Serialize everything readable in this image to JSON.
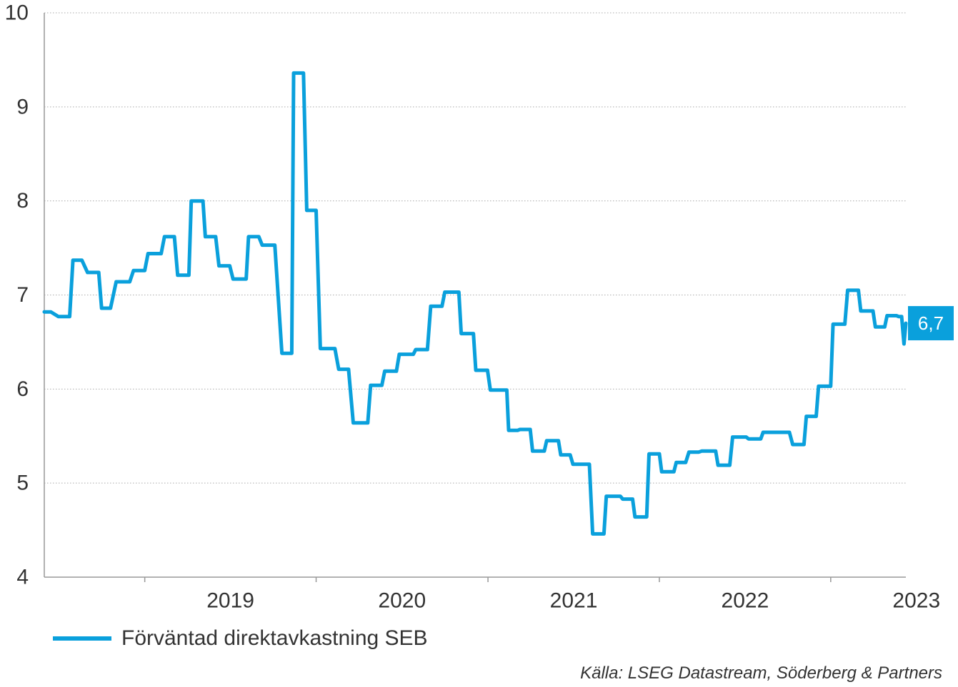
{
  "chart_data": {
    "type": "line",
    "ylim": [
      4,
      10
    ],
    "yticks": [
      4,
      5,
      6,
      7,
      8,
      9,
      10
    ],
    "xlim": [
      "2018-06-01",
      "2023-06-10"
    ],
    "x_tick_labels": [
      "2019",
      "2020",
      "2021",
      "2022",
      "2023"
    ],
    "grid": "horizontal dotted",
    "series": [
      {
        "name": "Förväntad direktavkastning SEB",
        "color": "#0AA0DC",
        "end_value_label": "6,7",
        "points": [
          [
            "2018-06-01",
            6.82
          ],
          [
            "2018-06-15",
            6.82
          ],
          [
            "2018-07-01",
            6.77
          ],
          [
            "2018-07-25",
            6.77
          ],
          [
            "2018-08-01",
            7.37
          ],
          [
            "2018-08-20",
            7.37
          ],
          [
            "2018-09-01",
            7.24
          ],
          [
            "2018-09-25",
            7.24
          ],
          [
            "2018-10-01",
            6.86
          ],
          [
            "2018-10-20",
            6.86
          ],
          [
            "2018-11-01",
            7.14
          ],
          [
            "2018-11-30",
            7.14
          ],
          [
            "2018-12-08",
            7.26
          ],
          [
            "2019-01-01",
            7.26
          ],
          [
            "2019-01-08",
            7.44
          ],
          [
            "2019-02-05",
            7.44
          ],
          [
            "2019-02-12",
            7.62
          ],
          [
            "2019-03-05",
            7.62
          ],
          [
            "2019-03-12",
            7.21
          ],
          [
            "2019-04-05",
            7.21
          ],
          [
            "2019-04-10",
            8.0
          ],
          [
            "2019-05-05",
            8.0
          ],
          [
            "2019-05-10",
            7.62
          ],
          [
            "2019-06-01",
            7.62
          ],
          [
            "2019-06-08",
            7.31
          ],
          [
            "2019-07-01",
            7.31
          ],
          [
            "2019-07-08",
            7.17
          ],
          [
            "2019-08-05",
            7.17
          ],
          [
            "2019-08-10",
            7.62
          ],
          [
            "2019-09-01",
            7.62
          ],
          [
            "2019-09-08",
            7.53
          ],
          [
            "2019-10-05",
            7.53
          ],
          [
            "2019-10-20",
            6.38
          ],
          [
            "2019-11-10",
            6.38
          ],
          [
            "2019-11-14",
            9.36
          ],
          [
            "2019-12-05",
            9.36
          ],
          [
            "2019-12-12",
            7.9
          ],
          [
            "2020-01-01",
            7.9
          ],
          [
            "2020-01-10",
            6.43
          ],
          [
            "2020-02-10",
            6.43
          ],
          [
            "2020-02-18",
            6.21
          ],
          [
            "2020-03-10",
            6.21
          ],
          [
            "2020-03-20",
            5.64
          ],
          [
            "2020-04-20",
            5.64
          ],
          [
            "2020-04-26",
            6.04
          ],
          [
            "2020-05-20",
            6.04
          ],
          [
            "2020-05-26",
            6.19
          ],
          [
            "2020-06-20",
            6.19
          ],
          [
            "2020-06-26",
            6.37
          ],
          [
            "2020-07-26",
            6.37
          ],
          [
            "2020-07-31",
            6.42
          ],
          [
            "2020-08-25",
            6.42
          ],
          [
            "2020-09-01",
            6.88
          ],
          [
            "2020-09-25",
            6.88
          ],
          [
            "2020-10-01",
            7.03
          ],
          [
            "2020-10-31",
            7.03
          ],
          [
            "2020-11-05",
            6.59
          ],
          [
            "2020-12-01",
            6.59
          ],
          [
            "2020-12-06",
            6.2
          ],
          [
            "2020-12-31",
            6.2
          ],
          [
            "2021-01-06",
            5.99
          ],
          [
            "2021-02-10",
            5.99
          ],
          [
            "2021-02-14",
            5.56
          ],
          [
            "2021-03-05",
            5.56
          ],
          [
            "2021-03-10",
            5.57
          ],
          [
            "2021-04-01",
            5.57
          ],
          [
            "2021-04-06",
            5.34
          ],
          [
            "2021-05-01",
            5.34
          ],
          [
            "2021-05-06",
            5.45
          ],
          [
            "2021-05-31",
            5.45
          ],
          [
            "2021-06-05",
            5.3
          ],
          [
            "2021-06-25",
            5.3
          ],
          [
            "2021-07-01",
            5.2
          ],
          [
            "2021-08-05",
            5.2
          ],
          [
            "2021-08-12",
            4.46
          ],
          [
            "2021-09-05",
            4.46
          ],
          [
            "2021-09-10",
            4.86
          ],
          [
            "2021-10-10",
            4.86
          ],
          [
            "2021-10-15",
            4.83
          ],
          [
            "2021-11-05",
            4.83
          ],
          [
            "2021-11-10",
            4.64
          ],
          [
            "2021-12-05",
            4.64
          ],
          [
            "2021-12-10",
            5.31
          ],
          [
            "2022-01-01",
            5.31
          ],
          [
            "2022-01-06",
            5.12
          ],
          [
            "2022-02-01",
            5.12
          ],
          [
            "2022-02-06",
            5.22
          ],
          [
            "2022-02-26",
            5.22
          ],
          [
            "2022-03-05",
            5.33
          ],
          [
            "2022-03-26",
            5.33
          ],
          [
            "2022-04-01",
            5.34
          ],
          [
            "2022-05-01",
            5.34
          ],
          [
            "2022-05-06",
            5.19
          ],
          [
            "2022-05-31",
            5.19
          ],
          [
            "2022-06-06",
            5.49
          ],
          [
            "2022-07-05",
            5.49
          ],
          [
            "2022-07-10",
            5.47
          ],
          [
            "2022-08-05",
            5.47
          ],
          [
            "2022-08-10",
            5.54
          ],
          [
            "2022-10-05",
            5.54
          ],
          [
            "2022-10-12",
            5.41
          ],
          [
            "2022-11-05",
            5.41
          ],
          [
            "2022-11-10",
            5.71
          ],
          [
            "2022-12-01",
            5.71
          ],
          [
            "2022-12-06",
            6.03
          ],
          [
            "2023-01-01",
            6.03
          ],
          [
            "2023-01-06",
            6.69
          ],
          [
            "2023-01-31",
            6.69
          ],
          [
            "2023-02-06",
            7.05
          ],
          [
            "2023-03-01",
            7.05
          ],
          [
            "2023-03-06",
            6.83
          ],
          [
            "2023-04-01",
            6.83
          ],
          [
            "2023-04-06",
            6.66
          ],
          [
            "2023-04-26",
            6.66
          ],
          [
            "2023-05-01",
            6.78
          ],
          [
            "2023-05-21",
            6.78
          ],
          [
            "2023-05-26",
            6.77
          ],
          [
            "2023-06-01",
            6.77
          ],
          [
            "2023-06-06",
            6.48
          ],
          [
            "2023-06-10",
            6.7
          ]
        ]
      }
    ]
  },
  "source_note": "Källa: LSEG Datastream, Söderberg & Partners"
}
